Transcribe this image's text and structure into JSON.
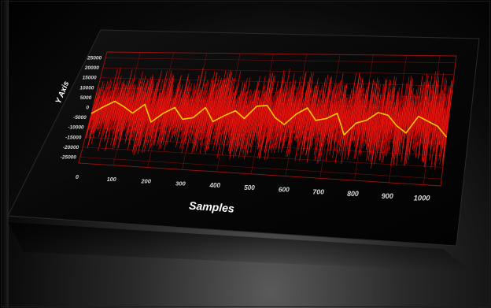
{
  "chart_data": {
    "type": "line",
    "title": "",
    "xlabel": "Samples",
    "ylabel": "Y Axis",
    "xlim": [
      0,
      1050
    ],
    "ylim": [
      -28000,
      28000
    ],
    "x_ticks": [
      0,
      100,
      200,
      300,
      400,
      500,
      600,
      700,
      800,
      900,
      1000
    ],
    "x_tick_labels": [
      "0",
      "100",
      "200",
      "300",
      "400",
      "500",
      "600",
      "700",
      "800",
      "900",
      "1000"
    ],
    "y_ticks": [
      25000,
      20000,
      15000,
      10000,
      5000,
      0,
      -5000,
      -10000,
      -15000,
      -20000,
      -25000
    ],
    "y_tick_labels": [
      "25000",
      "20000",
      "15000",
      "10000",
      "5000",
      "0",
      "-5000",
      "-10000",
      "-15000",
      "-20000",
      "-25000"
    ],
    "grid": true,
    "background": "#000000",
    "colors": {
      "signal": "#e00000",
      "smoothed": "#ffc800",
      "panel": "#050505",
      "grid": "#a01010",
      "tick_text": "#d8d8d8",
      "axis_title": "#ffffff"
    },
    "series": [
      {
        "role": "raw-signal",
        "color": "#e00000",
        "envelope_x": [
          0,
          50,
          100,
          150,
          200,
          250,
          300,
          350,
          400,
          450,
          500,
          550,
          600,
          650,
          700,
          750,
          800,
          850,
          900,
          950,
          1000,
          1050
        ],
        "envelope_max": [
          15000,
          21000,
          20000,
          18000,
          21000,
          19000,
          22000,
          20000,
          21000,
          18000,
          20000,
          22000,
          21000,
          19000,
          20000,
          22000,
          20000,
          18000,
          21000,
          20000,
          22000,
          20000
        ],
        "envelope_min": [
          -20000,
          -22000,
          -21000,
          -23000,
          -20000,
          -22000,
          -21000,
          -20000,
          -22000,
          -24000,
          -21000,
          -22000,
          -20000,
          -23000,
          -21000,
          -22000,
          -20000,
          -23000,
          -21000,
          -20000,
          -22000,
          -21000
        ]
      },
      {
        "role": "smoothed-signal",
        "color": "#ffc800",
        "x": [
          0,
          30,
          60,
          90,
          120,
          150,
          180,
          210,
          240,
          270,
          300,
          330,
          360,
          390,
          420,
          450,
          480,
          510,
          540,
          570,
          600,
          630,
          660,
          690,
          720,
          750,
          780,
          810,
          840,
          870,
          900,
          930,
          960,
          990,
          1020,
          1050
        ],
        "y": [
          -3000,
          500,
          3500,
          1000,
          -2000,
          2500,
          -6000,
          -1500,
          1500,
          -4000,
          -3000,
          2000,
          -4500,
          -1500,
          1000,
          -2500,
          3500,
          4000,
          -1500,
          -4500,
          500,
          3500,
          -2000,
          -1000,
          1500,
          -8000,
          -2500,
          -1000,
          2500,
          1500,
          -3000,
          -6000,
          1500,
          -500,
          -2500,
          -7000
        ]
      }
    ]
  }
}
